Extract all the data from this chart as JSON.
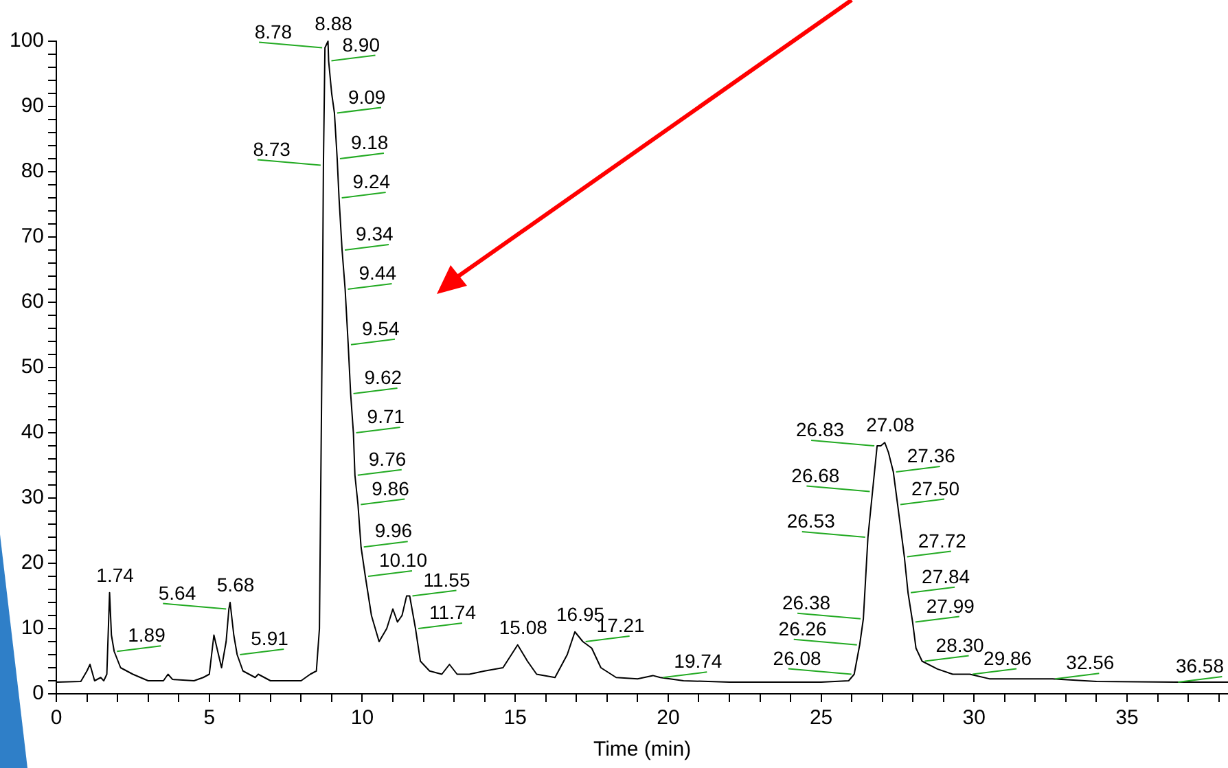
{
  "chart_data": {
    "type": "line",
    "xlabel": "Time (min)",
    "xlim": [
      0,
      38.3
    ],
    "ylim": [
      0,
      100
    ],
    "xticks": [
      0,
      {
        "value": 1,
        "label": null
      },
      {
        "value": 2,
        "label": null
      },
      {
        "value": 3,
        "label": null
      },
      {
        "value": 4,
        "label": null
      },
      5,
      {
        "value": 6,
        "label": null
      },
      {
        "value": 7,
        "label": null
      },
      {
        "value": 8,
        "label": null
      },
      {
        "value": 9,
        "label": null
      },
      10,
      {
        "value": 11,
        "label": null
      },
      {
        "value": 12,
        "label": null
      },
      {
        "value": 13,
        "label": null
      },
      {
        "value": 14,
        "label": null
      },
      15,
      {
        "value": 16,
        "label": null
      },
      {
        "value": 17,
        "label": null
      },
      {
        "value": 18,
        "label": null
      },
      {
        "value": 19,
        "label": null
      },
      20,
      {
        "value": 21,
        "label": null
      },
      {
        "value": 22,
        "label": null
      },
      {
        "value": 23,
        "label": null
      },
      {
        "value": 24,
        "label": null
      },
      25,
      {
        "value": 26,
        "label": null
      },
      {
        "value": 27,
        "label": null
      },
      {
        "value": 28,
        "label": null
      },
      {
        "value": 29,
        "label": null
      },
      30,
      {
        "value": 31,
        "label": null
      },
      {
        "value": 32,
        "label": null
      },
      {
        "value": 33,
        "label": null
      },
      {
        "value": 34,
        "label": null
      },
      35,
      {
        "value": 36,
        "label": null
      },
      {
        "value": 37,
        "label": null
      },
      {
        "value": 38,
        "label": null
      }
    ],
    "yticks": [
      0,
      {
        "value": 2,
        "label": null
      },
      {
        "value": 4,
        "label": null
      },
      {
        "value": 6,
        "label": null
      },
      {
        "value": 8,
        "label": null
      },
      10,
      {
        "value": 12,
        "label": null
      },
      {
        "value": 14,
        "label": null
      },
      {
        "value": 16,
        "label": null
      },
      {
        "value": 18,
        "label": null
      },
      20,
      {
        "value": 22,
        "label": null
      },
      {
        "value": 24,
        "label": null
      },
      {
        "value": 26,
        "label": null
      },
      {
        "value": 28,
        "label": null
      },
      30,
      {
        "value": 32,
        "label": null
      },
      {
        "value": 34,
        "label": null
      },
      {
        "value": 36,
        "label": null
      },
      {
        "value": 38,
        "label": null
      },
      40,
      {
        "value": 42,
        "label": null
      },
      {
        "value": 44,
        "label": null
      },
      {
        "value": 46,
        "label": null
      },
      {
        "value": 48,
        "label": null
      },
      50,
      {
        "value": 52,
        "label": null
      },
      {
        "value": 54,
        "label": null
      },
      {
        "value": 56,
        "label": null
      },
      {
        "value": 58,
        "label": null
      },
      60,
      {
        "value": 62,
        "label": null
      },
      {
        "value": 64,
        "label": null
      },
      {
        "value": 66,
        "label": null
      },
      {
        "value": 68,
        "label": null
      },
      70,
      {
        "value": 72,
        "label": null
      },
      {
        "value": 74,
        "label": null
      },
      {
        "value": 76,
        "label": null
      },
      {
        "value": 78,
        "label": null
      },
      80,
      {
        "value": 82,
        "label": null
      },
      {
        "value": 84,
        "label": null
      },
      {
        "value": 86,
        "label": null
      },
      {
        "value": 88,
        "label": null
      },
      90,
      {
        "value": 92,
        "label": null
      },
      {
        "value": 94,
        "label": null
      },
      {
        "value": 96,
        "label": null
      },
      {
        "value": 98,
        "label": null
      },
      100
    ],
    "grid": false,
    "legend": false,
    "marker": "none",
    "line_style": "solid",
    "series": [
      {
        "color": "#000000",
        "x": [
          0,
          0.8,
          1.0,
          1.1,
          1.25,
          1.45,
          1.55,
          1.65,
          1.74,
          1.8,
          1.89,
          2.1,
          2.5,
          3,
          3.5,
          3.65,
          3.8,
          4.5,
          4.8,
          5.0,
          5.15,
          5.25,
          5.4,
          5.55,
          5.64,
          5.68,
          5.8,
          5.91,
          6.1,
          6.5,
          6.6,
          7,
          8,
          8.3,
          8.5,
          8.6,
          8.7,
          8.73,
          8.78,
          8.88,
          8.9,
          9.0,
          9.09,
          9.18,
          9.24,
          9.34,
          9.44,
          9.54,
          9.62,
          9.71,
          9.76,
          9.86,
          9.96,
          10.1,
          10.3,
          10.55,
          10.8,
          11.0,
          11.15,
          11.3,
          11.45,
          11.55,
          11.74,
          11.9,
          12.2,
          12.6,
          12.85,
          13.1,
          13.5,
          14,
          14.6,
          15.08,
          15.4,
          15.7,
          16.3,
          16.7,
          16.95,
          17.21,
          17.5,
          17.8,
          18.3,
          19.0,
          19.5,
          19.74,
          20.5,
          22,
          25,
          25.9,
          26.08,
          26.26,
          26.38,
          26.53,
          26.68,
          26.83,
          26.95,
          27.08,
          27.2,
          27.36,
          27.5,
          27.72,
          27.84,
          27.99,
          28.1,
          28.3,
          28.8,
          29.3,
          29.86,
          30.5,
          32.56,
          34,
          36.58,
          38.3
        ],
        "values": [
          1.8,
          1.9,
          3.5,
          4.5,
          2,
          2.5,
          2,
          3,
          15.5,
          9,
          6.5,
          4,
          3,
          2,
          2,
          3,
          2.2,
          2,
          2.5,
          3,
          9,
          7,
          4,
          8,
          13,
          14,
          9,
          6,
          3.5,
          2.5,
          3,
          2,
          2,
          3,
          3.5,
          10,
          60,
          81,
          99,
          100,
          97,
          92,
          89,
          82,
          76,
          68,
          62,
          53.5,
          46,
          40,
          33.5,
          29,
          22.5,
          18,
          12,
          8,
          10,
          13,
          11,
          12,
          15,
          15,
          10,
          5,
          3.5,
          3,
          4.5,
          3,
          3,
          3.5,
          4,
          7.5,
          5,
          3,
          2.5,
          6,
          9.5,
          8,
          7,
          4,
          2.5,
          2.3,
          2.8,
          2.5,
          2,
          1.8,
          1.8,
          2,
          3,
          7.5,
          11.5,
          24,
          31,
          38,
          38,
          38.5,
          37,
          34,
          29,
          21,
          15.5,
          11,
          7,
          5,
          3.8,
          3,
          3,
          2.3,
          2.3,
          1.9,
          1.8,
          1.8
        ]
      }
    ],
    "annotations": [
      {
        "text": "1.74",
        "x": 1.74,
        "y": 15.5
      },
      {
        "text": "1.89",
        "x": 1.89,
        "y": 6.5
      },
      {
        "text": "5.64",
        "x": 5.64,
        "y": 13
      },
      {
        "text": "5.68",
        "x": 5.68,
        "y": 14
      },
      {
        "text": "5.91",
        "x": 5.91,
        "y": 6
      },
      {
        "text": "8.73",
        "x": 8.73,
        "y": 81
      },
      {
        "text": "8.78",
        "x": 8.78,
        "y": 99
      },
      {
        "text": "8.88",
        "x": 8.88,
        "y": 100
      },
      {
        "text": "8.90",
        "x": 8.9,
        "y": 97
      },
      {
        "text": "9.09",
        "x": 9.09,
        "y": 89
      },
      {
        "text": "9.18",
        "x": 9.18,
        "y": 82
      },
      {
        "text": "9.24",
        "x": 9.24,
        "y": 76
      },
      {
        "text": "9.34",
        "x": 9.34,
        "y": 68
      },
      {
        "text": "9.44",
        "x": 9.44,
        "y": 62
      },
      {
        "text": "9.54",
        "x": 9.54,
        "y": 53.5
      },
      {
        "text": "9.62",
        "x": 9.62,
        "y": 46
      },
      {
        "text": "9.71",
        "x": 9.71,
        "y": 40
      },
      {
        "text": "9.76",
        "x": 9.76,
        "y": 33.5
      },
      {
        "text": "9.86",
        "x": 9.86,
        "y": 29
      },
      {
        "text": "9.96",
        "x": 9.96,
        "y": 22.5
      },
      {
        "text": "10.10",
        "x": 10.1,
        "y": 18
      },
      {
        "text": "11.55",
        "x": 11.55,
        "y": 15
      },
      {
        "text": "11.74",
        "x": 11.74,
        "y": 10
      },
      {
        "text": "15.08",
        "x": 15.08,
        "y": 7.5
      },
      {
        "text": "16.95",
        "x": 16.95,
        "y": 9.5
      },
      {
        "text": "17.21",
        "x": 17.21,
        "y": 8
      },
      {
        "text": "19.74",
        "x": 19.74,
        "y": 2.5
      },
      {
        "text": "26.08",
        "x": 26.08,
        "y": 3
      },
      {
        "text": "26.26",
        "x": 26.26,
        "y": 7.5
      },
      {
        "text": "26.38",
        "x": 26.38,
        "y": 11.5
      },
      {
        "text": "26.53",
        "x": 26.53,
        "y": 24
      },
      {
        "text": "26.68",
        "x": 26.68,
        "y": 31
      },
      {
        "text": "26.83",
        "x": 26.83,
        "y": 38
      },
      {
        "text": "27.08",
        "x": 27.08,
        "y": 38.5
      },
      {
        "text": "27.36",
        "x": 27.36,
        "y": 34
      },
      {
        "text": "27.50",
        "x": 27.5,
        "y": 29
      },
      {
        "text": "27.72",
        "x": 27.72,
        "y": 21
      },
      {
        "text": "27.84",
        "x": 27.84,
        "y": 15.5
      },
      {
        "text": "27.99",
        "x": 27.99,
        "y": 11
      },
      {
        "text": "28.30",
        "x": 28.3,
        "y": 5
      },
      {
        "text": "29.86",
        "x": 29.86,
        "y": 3
      },
      {
        "text": "32.56",
        "x": 32.56,
        "y": 2.3
      },
      {
        "text": "36.58",
        "x": 36.58,
        "y": 1.8
      }
    ]
  }
}
